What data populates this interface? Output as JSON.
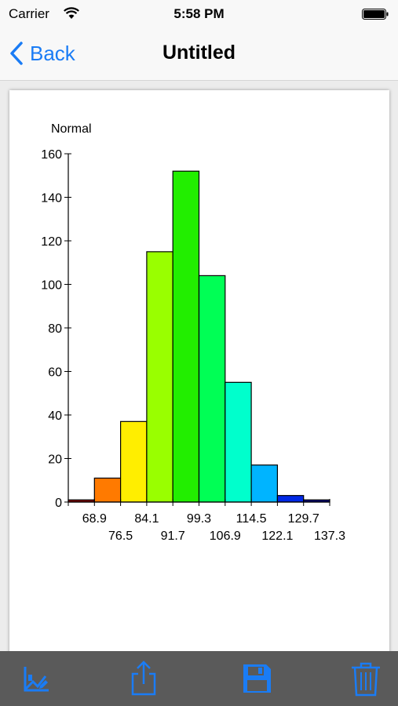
{
  "status": {
    "carrier": "Carrier",
    "time": "5:58 PM"
  },
  "nav": {
    "back_label": "Back",
    "title": "Untitled"
  },
  "toolbar": {
    "items": [
      {
        "icon": "edit-chart-icon"
      },
      {
        "icon": "share-icon"
      },
      {
        "icon": "save-icon"
      },
      {
        "icon": "trash-icon"
      }
    ],
    "colors": {
      "background": "#5a5a5a",
      "icon": "#1a7cf5"
    }
  },
  "chart_data": {
    "type": "bar",
    "title": "Normal",
    "xlabel": "",
    "ylabel": "",
    "ylim": [
      0,
      160
    ],
    "yticks": [
      "0",
      "20",
      "40",
      "60",
      "80",
      "100",
      "120",
      "140",
      "160"
    ],
    "bin_labels": [
      "68.9",
      "76.5",
      "84.1",
      "91.7",
      "99.3",
      "106.9",
      "114.5",
      "122.1",
      "129.7",
      "137.3"
    ],
    "values": [
      1,
      11,
      37,
      115,
      152,
      104,
      55,
      17,
      3,
      1
    ],
    "colors": [
      "#8b0000",
      "#ff7a00",
      "#ffee00",
      "#99ff00",
      "#22ee00",
      "#00ff55",
      "#00ffcc",
      "#00b4ff",
      "#0028e6",
      "#000080"
    ]
  }
}
